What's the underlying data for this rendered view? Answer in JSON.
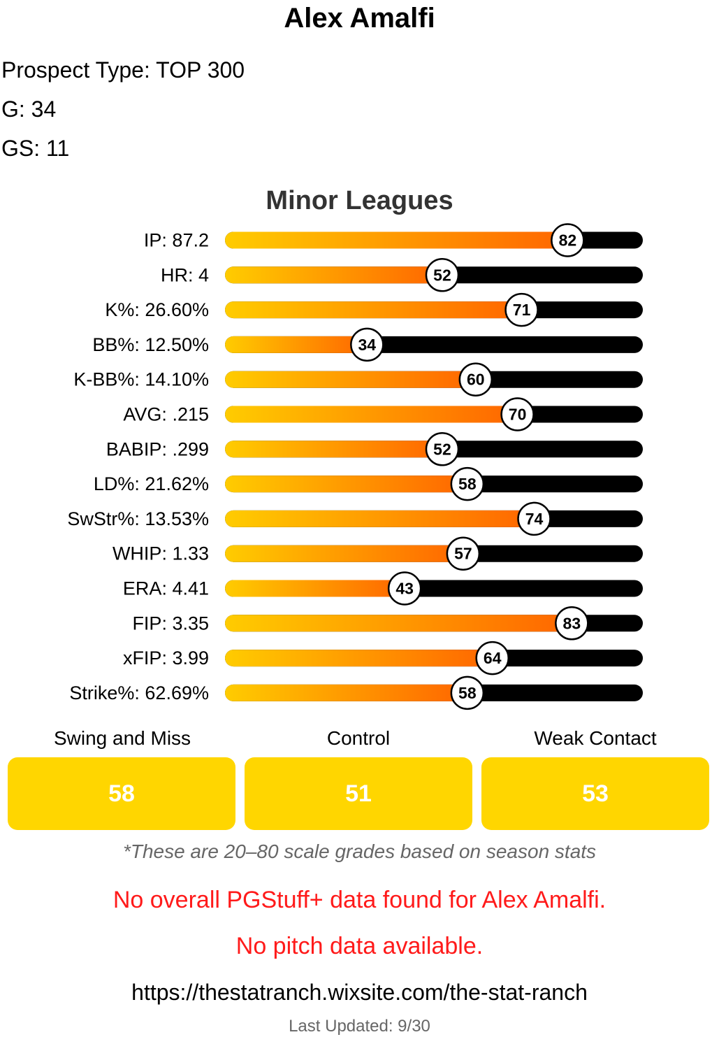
{
  "player": {
    "name": "Alex Amalfi",
    "prospect_type": "Prospect Type: TOP 300",
    "games": "G: 34",
    "games_started": "GS: 11"
  },
  "chart_data": {
    "type": "bar",
    "title": "Minor Leagues",
    "scale": [
      0,
      100
    ],
    "categories": [
      "IP: 87.2",
      "HR: 4",
      "K%: 26.60%",
      "BB%: 12.50%",
      "K-BB%: 14.10%",
      "AVG: .215",
      "BABIP: .299",
      "LD%: 21.62%",
      "SwStr%: 13.53%",
      "WHIP: 1.33",
      "ERA: 4.41",
      "FIP: 3.35",
      "xFIP: 3.99",
      "Strike%: 62.69%"
    ],
    "values": [
      82,
      52,
      71,
      34,
      60,
      70,
      52,
      58,
      74,
      57,
      43,
      83,
      64,
      58
    ],
    "colors": {
      "gradient_start": "#ffcc00",
      "gradient_end": "#ff6600",
      "track": "#000000",
      "bubble_fill": "#ffffff",
      "bubble_stroke": "#000000"
    }
  },
  "grades": [
    {
      "label": "Swing and Miss",
      "value": "58"
    },
    {
      "label": "Control",
      "value": "51"
    },
    {
      "label": "Weak Contact",
      "value": "53"
    }
  ],
  "note": "*These are 20–80 scale grades based on season stats",
  "messages": {
    "no_pgstuff": "No overall PGStuff+ data found for Alex Amalfi.",
    "no_pitch": "No pitch data available."
  },
  "url": "https://thestatranch.wixsite.com/the-stat-ranch",
  "last_updated": "Last Updated: 9/30"
}
